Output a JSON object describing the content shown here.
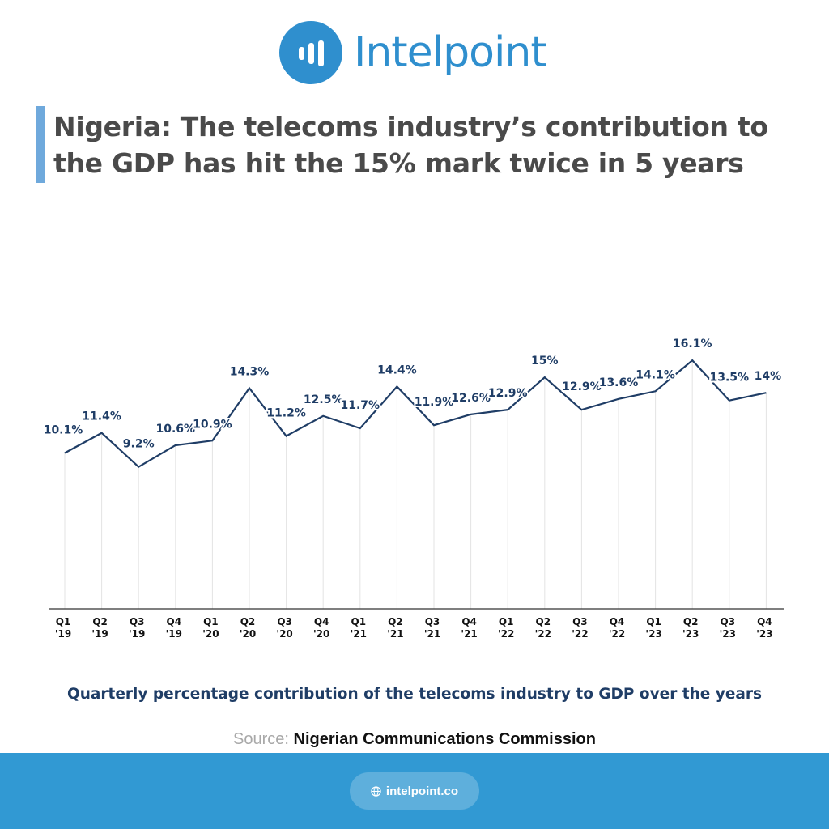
{
  "brand": {
    "name": "Intelpoint",
    "color": "#2f8fce",
    "icon": "bar-chart-logo-icon"
  },
  "title": "Nigeria: The telecoms industry’s contribution to the GDP has hit the 15% mark twice in 5 years",
  "caption": "Quarterly percentage contribution of the telecoms industry to GDP over the years",
  "source": {
    "label": "Source:",
    "value": "Nigerian Communications Commission"
  },
  "footer": {
    "link": "intelpoint.co",
    "icon": "globe-icon",
    "background": "#3199d3"
  },
  "chart_data": {
    "type": "line",
    "title": "",
    "xlabel": "",
    "ylabel": "",
    "grid": "vertical",
    "legend": "none",
    "ylim": [
      0,
      17
    ],
    "categories": [
      "Q1 '19",
      "Q2 '19",
      "Q3 '19",
      "Q4 '19",
      "Q1 '20",
      "Q2 '20",
      "Q3 '20",
      "Q4 '20",
      "Q1 '21",
      "Q2 '21",
      "Q3 '21",
      "Q4 '21",
      "Q1 '22",
      "Q2 '22",
      "Q3 '22",
      "Q4 '22",
      "Q1 '23",
      "Q2 '23",
      "Q3 '23",
      "Q4 '23"
    ],
    "values": [
      10.1,
      11.4,
      9.2,
      10.6,
      10.9,
      14.3,
      11.2,
      12.5,
      11.7,
      14.4,
      11.9,
      12.6,
      12.9,
      15,
      12.9,
      13.6,
      14.1,
      16.1,
      13.5,
      14
    ],
    "labels": [
      "10.1%",
      "11.4%",
      "9.2%",
      "10.6%",
      "10.9%",
      "14.3%",
      "11.2%",
      "12.5%",
      "11.7%",
      "14.4%",
      "11.9%",
      "12.6%",
      "12.9%",
      "15%",
      "12.9%",
      "13.6%",
      "14.1%",
      "16.1%",
      "13.5%",
      "14%"
    ],
    "line_color": "#1f3d66",
    "label_color": "#1f3d66"
  }
}
